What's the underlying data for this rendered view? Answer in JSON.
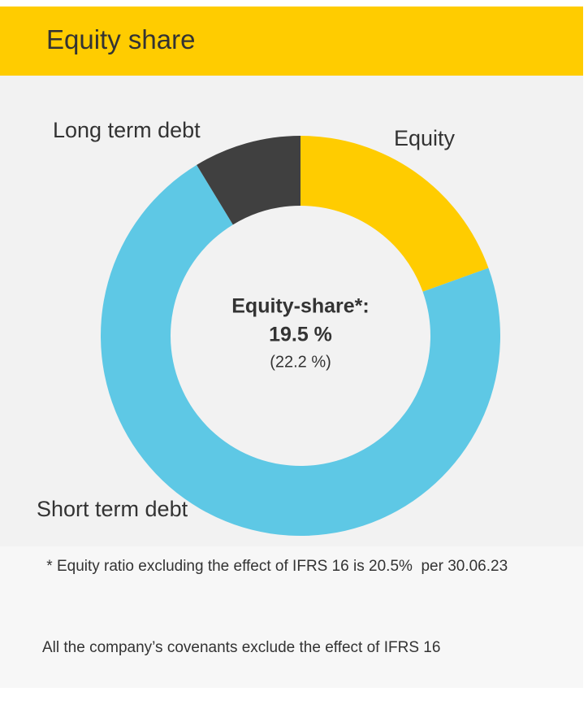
{
  "chart_data": {
    "type": "donut",
    "title": "Equity share",
    "categories": [
      "Equity",
      "Short term debt",
      "Long term debt"
    ],
    "values": [
      19.5,
      71.8,
      8.7
    ],
    "colors": [
      "#ffcc00",
      "#5ec8e5",
      "#404040"
    ],
    "center_label": "Equity-share*:",
    "center_value": "19.5 %",
    "center_prior": "(22.2 %)"
  },
  "notes": [
    " * Equity ratio excluding the effect of IFRS 16 is 20.5%  per 30.06.23",
    "All the company’s covenants exclude the effect of IFRS 16"
  ]
}
